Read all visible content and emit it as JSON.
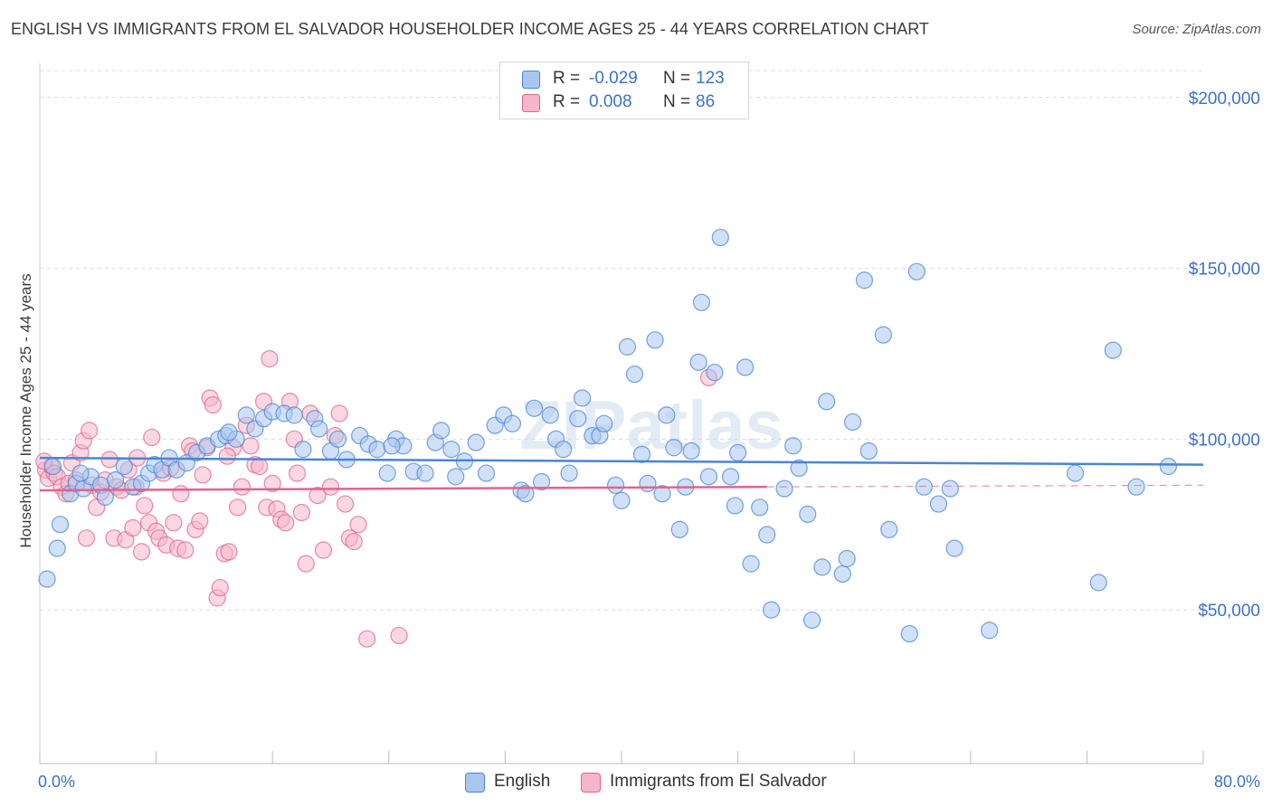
{
  "title": "ENGLISH VS IMMIGRANTS FROM EL SALVADOR HOUSEHOLDER INCOME AGES 25 - 44 YEARS CORRELATION CHART",
  "source": "Source: ZipAtlas.com",
  "watermark": "ZIPatlas",
  "legend_top": {
    "rows": [
      {
        "r_label": "R =",
        "r_value": "-0.029",
        "n_label": "N =",
        "n_value": "123",
        "color": "#a9c6ee"
      },
      {
        "r_label": "R =",
        "r_value": "0.008",
        "n_label": "N =",
        "n_value": "86",
        "color": "#f6b6c9"
      }
    ]
  },
  "legend_bottom": [
    {
      "label": "English",
      "color": "#a9c6ee"
    },
    {
      "label": "Immigrants from El Salvador",
      "color": "#f6b6c9"
    }
  ],
  "chart_data": {
    "type": "scatter",
    "xlabel": "",
    "ylabel": "Householder Income Ages 25 - 44 years",
    "xlim": [
      0,
      80
    ],
    "ylim": [
      5000,
      210000
    ],
    "x_tick_labels": [
      "0.0%",
      "80.0%"
    ],
    "y_ticks": [
      50000,
      100000,
      150000,
      200000
    ],
    "y_tick_labels": [
      "$50,000",
      "$100,000",
      "$150,000",
      "$200,000"
    ],
    "grid": true,
    "series": [
      {
        "name": "English",
        "color": "#4a84d6",
        "fill": "#a9c6ee",
        "trend": {
          "x": [
            0,
            80
          ],
          "y": [
            94500,
            92500
          ]
        },
        "points": [
          [
            0.5,
            59000
          ],
          [
            1.2,
            68000
          ],
          [
            1.4,
            75000
          ],
          [
            2.1,
            84000
          ],
          [
            2.5,
            87000
          ],
          [
            3.0,
            85500
          ],
          [
            3.5,
            89000
          ],
          [
            4.2,
            86500
          ],
          [
            4.5,
            83000
          ],
          [
            5.2,
            88000
          ],
          [
            5.8,
            92000
          ],
          [
            6.4,
            86000
          ],
          [
            7.0,
            87000
          ],
          [
            7.5,
            90000
          ],
          [
            7.9,
            92500
          ],
          [
            8.4,
            91000
          ],
          [
            8.9,
            94500
          ],
          [
            9.4,
            91000
          ],
          [
            10.1,
            93000
          ],
          [
            10.8,
            96000
          ],
          [
            11.5,
            98000
          ],
          [
            12.3,
            100000
          ],
          [
            12.8,
            101000
          ],
          [
            13.5,
            100000
          ],
          [
            14.2,
            107000
          ],
          [
            14.8,
            103000
          ],
          [
            15.4,
            106000
          ],
          [
            16.0,
            108000
          ],
          [
            16.8,
            107500
          ],
          [
            17.5,
            107000
          ],
          [
            18.1,
            97000
          ],
          [
            18.9,
            106000
          ],
          [
            19.2,
            103000
          ],
          [
            20.0,
            96500
          ],
          [
            20.5,
            100000
          ],
          [
            21.1,
            94000
          ],
          [
            22.0,
            101000
          ],
          [
            22.6,
            98500
          ],
          [
            23.2,
            97000
          ],
          [
            23.9,
            90000
          ],
          [
            24.5,
            100000
          ],
          [
            25.0,
            98000
          ],
          [
            25.7,
            90500
          ],
          [
            26.5,
            90000
          ],
          [
            27.2,
            99000
          ],
          [
            27.6,
            102500
          ],
          [
            28.3,
            97000
          ],
          [
            28.6,
            89000
          ],
          [
            29.2,
            93500
          ],
          [
            30.0,
            99000
          ],
          [
            30.7,
            90000
          ],
          [
            31.3,
            104000
          ],
          [
            31.9,
            107000
          ],
          [
            32.5,
            104500
          ],
          [
            33.1,
            85000
          ],
          [
            33.4,
            84000
          ],
          [
            34.0,
            109000
          ],
          [
            34.5,
            87500
          ],
          [
            35.1,
            107000
          ],
          [
            35.5,
            100000
          ],
          [
            36.4,
            90000
          ],
          [
            37.0,
            106000
          ],
          [
            37.3,
            112000
          ],
          [
            38.0,
            101000
          ],
          [
            38.5,
            101000
          ],
          [
            38.8,
            104500
          ],
          [
            39.6,
            86500
          ],
          [
            40.0,
            82000
          ],
          [
            40.4,
            127000
          ],
          [
            40.9,
            119000
          ],
          [
            41.4,
            95500
          ],
          [
            41.8,
            87000
          ],
          [
            42.3,
            129000
          ],
          [
            42.8,
            84000
          ],
          [
            43.1,
            107000
          ],
          [
            43.6,
            97500
          ],
          [
            44.0,
            73500
          ],
          [
            44.4,
            86000
          ],
          [
            44.8,
            96500
          ],
          [
            45.3,
            122500
          ],
          [
            45.5,
            140000
          ],
          [
            46.0,
            89000
          ],
          [
            46.4,
            119500
          ],
          [
            46.8,
            159000
          ],
          [
            47.5,
            89000
          ],
          [
            47.8,
            80500
          ],
          [
            48.5,
            121000
          ],
          [
            48.9,
            63500
          ],
          [
            49.5,
            80000
          ],
          [
            50.0,
            72000
          ],
          [
            50.3,
            50000
          ],
          [
            51.2,
            85500
          ],
          [
            51.8,
            98000
          ],
          [
            52.2,
            91500
          ],
          [
            52.8,
            78000
          ],
          [
            53.1,
            47000
          ],
          [
            53.8,
            62500
          ],
          [
            54.1,
            111000
          ],
          [
            55.2,
            60500
          ],
          [
            55.5,
            65000
          ],
          [
            55.9,
            105000
          ],
          [
            56.7,
            146500
          ],
          [
            58.0,
            130500
          ],
          [
            58.4,
            73500
          ],
          [
            59.8,
            43000
          ],
          [
            60.3,
            149000
          ],
          [
            60.8,
            86000
          ],
          [
            61.8,
            81000
          ],
          [
            62.6,
            85500
          ],
          [
            62.9,
            68000
          ],
          [
            65.3,
            44000
          ],
          [
            71.2,
            90000
          ],
          [
            72.8,
            58000
          ],
          [
            73.8,
            126000
          ],
          [
            75.4,
            86000
          ],
          [
            77.6,
            92000
          ],
          [
            0.9,
            92000
          ],
          [
            2.8,
            90000
          ],
          [
            13.0,
            102000
          ],
          [
            24.2,
            98000
          ],
          [
            36.0,
            97000
          ],
          [
            48.0,
            96000
          ],
          [
            57.0,
            96500
          ]
        ]
      },
      {
        "name": "Immigrants from El Salvador",
        "color": "#e0648f",
        "fill": "#f6b6c9",
        "trend": {
          "x": [
            0,
            50
          ],
          "y": [
            85000,
            86000
          ]
        },
        "trend_dashed": {
          "x": [
            50,
            80
          ],
          "y": [
            86000,
            86500
          ]
        },
        "points": [
          [
            0.4,
            91000
          ],
          [
            0.6,
            88500
          ],
          [
            0.8,
            92000
          ],
          [
            1.0,
            90000
          ],
          [
            1.2,
            89000
          ],
          [
            1.5,
            86000
          ],
          [
            1.8,
            84000
          ],
          [
            2.0,
            87000
          ],
          [
            2.2,
            93000
          ],
          [
            2.5,
            88000
          ],
          [
            2.8,
            96000
          ],
          [
            3.0,
            99500
          ],
          [
            3.2,
            71000
          ],
          [
            3.4,
            102500
          ],
          [
            3.6,
            86500
          ],
          [
            3.9,
            80000
          ],
          [
            4.2,
            84500
          ],
          [
            4.5,
            88000
          ],
          [
            4.8,
            94000
          ],
          [
            5.1,
            71000
          ],
          [
            5.3,
            86000
          ],
          [
            5.6,
            85000
          ],
          [
            5.9,
            70500
          ],
          [
            6.1,
            91000
          ],
          [
            6.4,
            74000
          ],
          [
            6.7,
            94500
          ],
          [
            7.0,
            67000
          ],
          [
            7.2,
            80500
          ],
          [
            7.5,
            75500
          ],
          [
            7.7,
            100500
          ],
          [
            8.0,
            73000
          ],
          [
            8.2,
            71000
          ],
          [
            8.5,
            90000
          ],
          [
            8.7,
            69000
          ],
          [
            9.0,
            91500
          ],
          [
            9.2,
            75500
          ],
          [
            9.5,
            68000
          ],
          [
            9.7,
            84000
          ],
          [
            10.0,
            67500
          ],
          [
            10.3,
            98000
          ],
          [
            10.5,
            96500
          ],
          [
            10.7,
            73500
          ],
          [
            11.0,
            76000
          ],
          [
            11.2,
            89500
          ],
          [
            11.5,
            97500
          ],
          [
            11.7,
            112000
          ],
          [
            11.9,
            110000
          ],
          [
            12.2,
            53500
          ],
          [
            12.4,
            56500
          ],
          [
            12.7,
            66500
          ],
          [
            13.0,
            67000
          ],
          [
            13.3,
            97500
          ],
          [
            13.6,
            80000
          ],
          [
            13.9,
            86000
          ],
          [
            14.2,
            104000
          ],
          [
            14.5,
            98000
          ],
          [
            14.8,
            92500
          ],
          [
            15.1,
            92000
          ],
          [
            15.4,
            111000
          ],
          [
            15.6,
            80000
          ],
          [
            15.8,
            123500
          ],
          [
            16.0,
            87000
          ],
          [
            16.3,
            79500
          ],
          [
            16.6,
            76500
          ],
          [
            16.9,
            75500
          ],
          [
            17.2,
            111000
          ],
          [
            17.5,
            100000
          ],
          [
            17.7,
            90000
          ],
          [
            18.0,
            78500
          ],
          [
            18.3,
            63500
          ],
          [
            18.6,
            107500
          ],
          [
            19.1,
            83500
          ],
          [
            19.5,
            67500
          ],
          [
            20.0,
            86000
          ],
          [
            20.3,
            101000
          ],
          [
            20.6,
            107500
          ],
          [
            21.0,
            81000
          ],
          [
            21.3,
            71000
          ],
          [
            21.6,
            70000
          ],
          [
            21.9,
            75000
          ],
          [
            22.5,
            41500
          ],
          [
            24.7,
            42500
          ],
          [
            0.3,
            93500
          ],
          [
            6.6,
            86000
          ],
          [
            46.0,
            118000
          ],
          [
            12.9,
            95000
          ]
        ]
      }
    ]
  }
}
